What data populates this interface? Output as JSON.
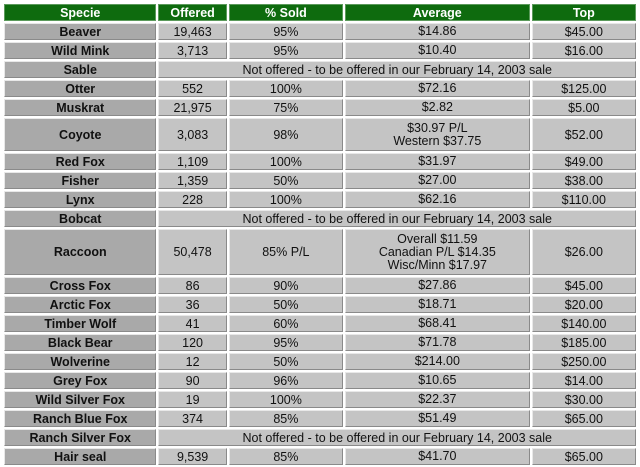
{
  "headers": [
    "Specie",
    "Offered",
    "% Sold",
    "Average",
    "Top"
  ],
  "rows": [
    {
      "specie": "Beaver",
      "offered": "19,463",
      "sold": "95%",
      "average": [
        "$14.86"
      ],
      "top": "$45.00"
    },
    {
      "specie": "Wild Mink",
      "offered": "3,713",
      "sold": "95%",
      "average": [
        "$10.40"
      ],
      "top": "$16.00"
    },
    {
      "specie": "Sable",
      "note": "Not offered - to be offered in our February 14, 2003 sale"
    },
    {
      "specie": "Otter",
      "offered": "552",
      "sold": "100%",
      "average": [
        "$72.16"
      ],
      "top": "$125.00"
    },
    {
      "specie": "Muskrat",
      "offered": "21,975",
      "sold": "75%",
      "average": [
        "$2.82"
      ],
      "top": "$5.00"
    },
    {
      "specie": "Coyote",
      "offered": "3,083",
      "sold": "98%",
      "average": [
        "$30.97 P/L",
        "Western $37.75"
      ],
      "top": "$52.00"
    },
    {
      "specie": "Red Fox",
      "offered": "1,109",
      "sold": "100%",
      "average": [
        "$31.97"
      ],
      "top": "$49.00"
    },
    {
      "specie": "Fisher",
      "offered": "1,359",
      "sold": "50%",
      "average": [
        "$27.00"
      ],
      "top": "$38.00"
    },
    {
      "specie": "Lynx",
      "offered": "228",
      "sold": "100%",
      "average": [
        "$62.16"
      ],
      "top": "$110.00"
    },
    {
      "specie": "Bobcat",
      "note": "Not offered - to be offered in our February 14, 2003 sale"
    },
    {
      "specie": "Raccoon",
      "offered": "50,478",
      "sold": "85% P/L",
      "average": [
        "Overall $11.59",
        "Canadian P/L $14.35",
        "Wisc/Minn $17.97"
      ],
      "top": "$26.00"
    },
    {
      "specie": "Cross Fox",
      "offered": "86",
      "sold": "90%",
      "average": [
        "$27.86"
      ],
      "top": "$45.00"
    },
    {
      "specie": "Arctic Fox",
      "offered": "36",
      "sold": "50%",
      "average": [
        "$18.71"
      ],
      "top": "$20.00"
    },
    {
      "specie": "Timber Wolf",
      "offered": "41",
      "sold": "60%",
      "average": [
        "$68.41"
      ],
      "top": "$140.00"
    },
    {
      "specie": "Black Bear",
      "offered": "120",
      "sold": "95%",
      "average": [
        "$71.78"
      ],
      "top": "$185.00"
    },
    {
      "specie": "Wolverine",
      "offered": "12",
      "sold": "50%",
      "average": [
        "$214.00"
      ],
      "top": "$250.00"
    },
    {
      "specie": "Grey Fox",
      "offered": "90",
      "sold": "96%",
      "average": [
        "$10.65"
      ],
      "top": "$14.00"
    },
    {
      "specie": "Wild Silver Fox",
      "offered": "19",
      "sold": "100%",
      "average": [
        "$22.37"
      ],
      "top": "$30.00"
    },
    {
      "specie": "Ranch Blue Fox",
      "offered": "374",
      "sold": "85%",
      "average": [
        "$51.49"
      ],
      "top": "$65.00"
    },
    {
      "specie": "Ranch Silver Fox",
      "note": "Not offered - to be offered in our February 14, 2003 sale"
    },
    {
      "specie": "Hair seal",
      "offered": "9,539",
      "sold": "85%",
      "average": [
        "$41.70"
      ],
      "top": "$65.00"
    }
  ]
}
